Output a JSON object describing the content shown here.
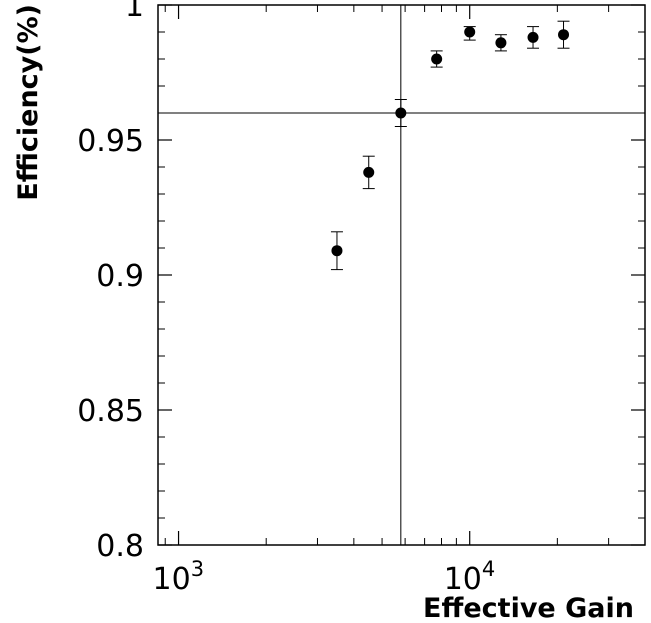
{
  "chart_data": {
    "type": "scatter",
    "title": "",
    "xlabel": "Effective Gain",
    "ylabel": "Efficiency(%)",
    "x_scale": "log",
    "xlim": [
      850,
      40000
    ],
    "ylim": [
      0.8,
      1.0
    ],
    "x_ticks": [
      {
        "value": 1000,
        "base": "10",
        "exp": "3"
      },
      {
        "value": 10000,
        "base": "10",
        "exp": "4"
      }
    ],
    "y_ticks": [
      {
        "value": 0.8,
        "label": "0.8"
      },
      {
        "value": 0.85,
        "label": "0.85"
      },
      {
        "value": 0.9,
        "label": "0.9"
      },
      {
        "value": 0.95,
        "label": "0.95"
      },
      {
        "value": 1.0,
        "label": "1"
      }
    ],
    "grid": false,
    "reference_lines": {
      "x": 5800,
      "y": 0.96
    },
    "points": [
      {
        "x": 3500,
        "y": 0.909,
        "err_up": 0.007,
        "err_down": 0.007
      },
      {
        "x": 4500,
        "y": 0.938,
        "err_up": 0.006,
        "err_down": 0.006
      },
      {
        "x": 5800,
        "y": 0.96,
        "err_up": 0.005,
        "err_down": 0.005
      },
      {
        "x": 7700,
        "y": 0.98,
        "err_up": 0.003,
        "err_down": 0.003
      },
      {
        "x": 10000,
        "y": 0.99,
        "err_up": 0.002,
        "err_down": 0.003
      },
      {
        "x": 12800,
        "y": 0.986,
        "err_up": 0.003,
        "err_down": 0.003
      },
      {
        "x": 16500,
        "y": 0.988,
        "err_up": 0.004,
        "err_down": 0.004
      },
      {
        "x": 21000,
        "y": 0.989,
        "err_up": 0.005,
        "err_down": 0.005
      }
    ]
  }
}
